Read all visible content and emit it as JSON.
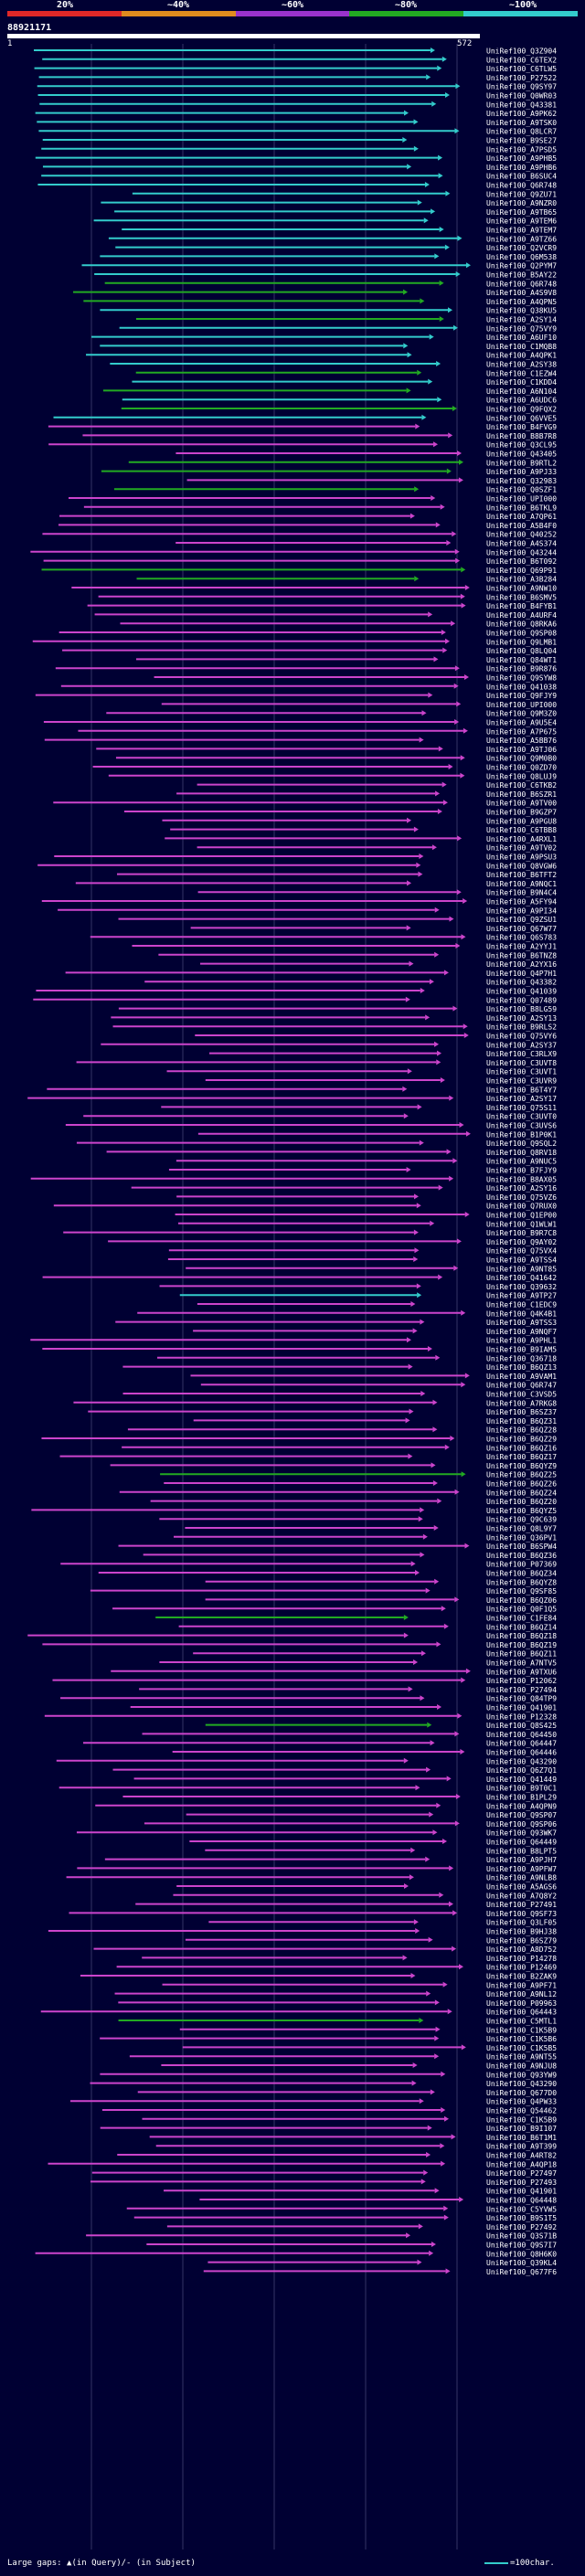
{
  "query": {
    "id": "88921171",
    "start": "1",
    "end": "572"
  },
  "legend": [
    {
      "label": "20%",
      "color": "#e02828"
    },
    {
      "label": "~40%",
      "color": "#e08c1e"
    },
    {
      "label": "~60%",
      "color": "#9933cc"
    },
    {
      "label": "~80%",
      "color": "#22aa22"
    },
    {
      "label": "~100%",
      "color": "#33cccc"
    }
  ],
  "footer": {
    "gaps_text": "Large gaps: ▲(in Query)/- (in Subject)",
    "scale_text": "=100char."
  },
  "colors": {
    "cyan": "#33cccc",
    "green": "#22aa22",
    "magenta": "#cc44cc",
    "white": "#ffffff"
  },
  "hits": [
    "UniRef100_Q3Z904",
    "UniRef100_C6TEX2",
    "UniRef100_C6TLW5",
    "UniRef100_P27522",
    "UniRef100_Q9SY97",
    "UniRef100_Q0WR03",
    "UniRef100_Q43381",
    "UniRef100_A9PK62",
    "UniRef100_A9TSK0",
    "UniRef100_Q8LCR7",
    "UniRef100_B9SE27",
    "UniRef100_A7PSD5",
    "UniRef100_A9PHB5",
    "UniRef100_A9PHB6",
    "UniRef100_B6SUC4",
    "UniRef100_Q6R748",
    "UniRef100_Q9ZU71",
    "UniRef100_A9NZR0",
    "UniRef100_A9TB65",
    "UniRef100_A9TEM6",
    "UniRef100_A9TEM7",
    "UniRef100_A9TZ66",
    "UniRef100_Q2VCR9",
    "UniRef100_Q6M538",
    "UniRef100_Q2PYM7",
    "UniRef100_B5AY22",
    "UniRef100_Q6R748",
    "UniRef100_A4S9V8",
    "UniRef100_A4QPN5",
    "UniRef100_Q38KU5",
    "UniRef100_A2SY14",
    "UniRef100_Q75VY9",
    "UniRef100_A6UF10",
    "UniRef100_C1MQB8",
    "UniRef100_A4QPK1",
    "UniRef100_A2SY38",
    "UniRef100_C1EZW4",
    "UniRef100_C1KDD4",
    "UniRef100_A6N104",
    "UniRef100_A6UDC6",
    "UniRef100_Q9FQX2",
    "UniRef100_Q6VVE5",
    "UniRef100_B4FVG9",
    "UniRef100_B8B7R8",
    "UniRef100_Q3CL95",
    "UniRef100_Q43405",
    "UniRef100_B9RTL2",
    "UniRef100_A9PJ33",
    "UniRef100_Q32983",
    "UniRef100_Q0SZF1",
    "UniRef100_UPI000",
    "UniRef100_B6TKL9",
    "UniRef100_A7QP61",
    "UniRef100_A5B4F0",
    "UniRef100_Q40252",
    "UniRef100_A4S374",
    "UniRef100_Q43244",
    "UniRef100_B6T092",
    "UniRef100_Q69P91",
    "UniRef100_A3B284",
    "UniRef100_A9NW10",
    "UniRef100_B6SMV5",
    "UniRef100_B4FYB1",
    "UniRef100_A4URF4",
    "UniRef100_Q8RKA6",
    "UniRef100_Q9SP08",
    "UniRef100_Q9LMB1",
    "UniRef100_Q8LQ04",
    "UniRef100_Q84WT1",
    "UniRef100_B9R876",
    "UniRef100_Q9SYW8",
    "UniRef100_Q41038",
    "UniRef100_Q9FJY9",
    "UniRef100_UPI000",
    "UniRef100_Q9M3Z0",
    "UniRef100_A9U5E4",
    "UniRef100_A7P675",
    "UniRef100_A5BB76",
    "UniRef100_A9TJ06",
    "UniRef100_Q9M0B0",
    "UniRef100_Q0ZD70",
    "UniRef100_Q8LUJ9",
    "UniRef100_C6TKB2",
    "UniRef100_B6SZR1",
    "UniRef100_A9TV00",
    "UniRef100_B9GZP7",
    "UniRef100_A9PGU8",
    "UniRef100_C6TBB8",
    "UniRef100_A4RXL1",
    "UniRef100_A9TV02",
    "UniRef100_A9PSU3",
    "UniRef100_Q8VGW6",
    "UniRef100_B6TFT2",
    "UniRef100_A9NQC1",
    "UniRef100_B9N4C4",
    "UniRef100_A5FY94",
    "UniRef100_A9PI34",
    "UniRef100_Q9ZSU1",
    "UniRef100_Q67W77",
    "UniRef100_Q6S783",
    "UniRef100_A2YYJ1",
    "UniRef100_B6TNZ8",
    "UniRef100_A2YX16",
    "UniRef100_Q4P7H1",
    "UniRef100_Q43382",
    "UniRef100_Q41039",
    "UniRef100_Q07489",
    "UniRef100_B8LG59",
    "UniRef100_A2SY13",
    "UniRef100_B9RLS2",
    "UniRef100_Q75VY6",
    "UniRef100_A2SY37",
    "UniRef100_C3RLX9",
    "UniRef100_C3UVT8",
    "UniRef100_C3UVT1",
    "UniRef100_C3UVR9",
    "UniRef100_B6T4Y7",
    "UniRef100_A2SY17",
    "UniRef100_Q75S11",
    "UniRef100_C3UVT0",
    "UniRef100_C3UVS6",
    "UniRef100_B1P0K1",
    "UniRef100_Q9SQL2",
    "UniRef100_Q8RV18",
    "UniRef100_A9NUC5",
    "UniRef100_B7FJY9",
    "UniRef100_B8AX05",
    "UniRef100_A2SY16",
    "UniRef100_Q75VZ6",
    "UniRef100_Q7RUX0",
    "UniRef100_Q1EP00",
    "UniRef100_Q1WLW1",
    "UniRef100_B9R7C8",
    "UniRef100_Q9AY02",
    "UniRef100_Q75VX4",
    "UniRef100_A9TSS4",
    "UniRef100_A9NT85",
    "UniRef100_Q41642",
    "UniRef100_Q39632",
    "UniRef100_A9TP27",
    "UniRef100_C1EDC9",
    "UniRef100_Q4K4B1",
    "UniRef100_A9TSS3",
    "UniRef100_A9NQF7",
    "UniRef100_A9PHL1",
    "UniRef100_B9IAM5",
    "UniRef100_Q36718",
    "UniRef100_B6QZ13",
    "UniRef100_A9VAM1",
    "UniRef100_Q6R747",
    "UniRef100_C3VSD5",
    "UniRef100_A7RKG8",
    "UniRef100_B6SZ37",
    "UniRef100_B6QZ31",
    "UniRef100_B6QZ28",
    "UniRef100_B6QZ29",
    "UniRef100_B6QZ16",
    "UniRef100_B6QZ17",
    "UniRef100_B6QYZ9",
    "UniRef100_B6QZ25",
    "UniRef100_B6QZ26",
    "UniRef100_B6QZ24",
    "UniRef100_B6QZ20",
    "UniRef100_B6QYZ5",
    "UniRef100_Q9C639",
    "UniRef100_Q8L9Y7",
    "UniRef100_Q36PV1",
    "UniRef100_B6SPW4",
    "UniRef100_B6QZ36",
    "UniRef100_P07369",
    "UniRef100_B6QZ34",
    "UniRef100_B6QYZ8",
    "UniRef100_Q9SF85",
    "UniRef100_B6QZ06",
    "UniRef100_Q0F1Q5",
    "UniRef100_C1FE84",
    "UniRef100_B6QZ14",
    "UniRef100_B6QZ18",
    "UniRef100_B6QZ19",
    "UniRef100_B6QZ11",
    "UniRef100_A7NTV5",
    "UniRef100_A9TXU6",
    "UniRef100_P12062",
    "UniRef100_P27494",
    "UniRef100_Q84TP9",
    "UniRef100_Q41901",
    "UniRef100_P12328",
    "UniRef100_Q8S425",
    "UniRef100_Q64450",
    "UniRef100_Q64447",
    "UniRef100_Q64446",
    "UniRef100_Q43290",
    "UniRef100_Q6Z7Q1",
    "UniRef100_Q41449",
    "UniRef100_B9T0C1",
    "UniRef100_B1PL29",
    "UniRef100_A4QPN9",
    "UniRef100_Q9SP07",
    "UniRef100_Q9SP06",
    "UniRef100_Q93WK7",
    "UniRef100_Q64449",
    "UniRef100_B8LPT5",
    "UniRef100_A9PJH7",
    "UniRef100_A9PFW7",
    "UniRef100_A9NLB8",
    "UniRef100_A5AGS6",
    "UniRef100_A7Q8Y2",
    "UniRef100_P27491",
    "UniRef100_Q9SF73",
    "UniRef100_Q3LF05",
    "UniRef100_B9HJ38",
    "UniRef100_B6SZ79",
    "UniRef100_A8D752",
    "UniRef100_P14278",
    "UniRef100_P12469",
    "UniRef100_B2ZAK9",
    "UniRef100_A9PF71",
    "UniRef100_A9NL12",
    "UniRef100_P09963",
    "UniRef100_Q64443",
    "UniRef100_C5MTL1",
    "UniRef100_C1K5B9",
    "UniRef100_C1K5B6",
    "UniRef100_C1K5B5",
    "UniRef100_A9NT55",
    "UniRef100_A9NJU8",
    "UniRef100_Q93YW9",
    "UniRef100_Q43290",
    "UniRef100_Q677D0",
    "UniRef100_Q4PW33",
    "UniRef100_Q54462",
    "UniRef100_C1K5B9",
    "UniRef100_B9I107",
    "UniRef100_B6T1M1",
    "UniRef100_A9T399",
    "UniRef100_A4RT82",
    "UniRef100_A4QP18",
    "UniRef100_P27497",
    "UniRef100_P27493",
    "UniRef100_Q41901",
    "UniRef100_Q64448",
    "UniRef100_C5YVW5",
    "UniRef100_B9S1T5",
    "UniRef100_P27492",
    "UniRef100_Q3S71B",
    "UniRef100_Q9S7I7",
    "UniRef100_Q8H6K0",
    "UniRef100_Q39KL4",
    "UniRef100_Q677F6"
  ]
}
